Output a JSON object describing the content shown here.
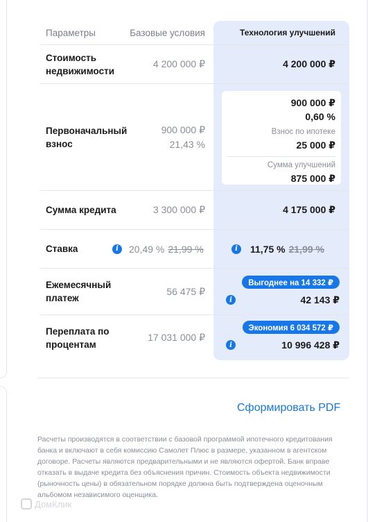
{
  "table": {
    "headers": {
      "params": "Параметры",
      "base": "Базовые условия",
      "tech": "Технология улучшений"
    },
    "price": {
      "label": "Стоимость недвижимости",
      "base": "4 200 000 ₽",
      "tech": "4 200 000 ₽"
    },
    "initial": {
      "label": "Первоначальный взнос",
      "base_amount": "900 000 ₽",
      "base_percent": "21,43 %",
      "tech_amount": "900 000 ₽",
      "tech_percent": "0,60 %",
      "mortgage_label": "Взнос по ипотеке",
      "mortgage_value": "25 000 ₽",
      "improve_label": "Сумма улучшений",
      "improve_value": "875 000 ₽"
    },
    "credit": {
      "label": "Сумма кредита",
      "base": "3 300 000 ₽",
      "tech": "4 175 000 ₽"
    },
    "rate": {
      "label": "Ставка",
      "base": "20,49 %",
      "base_old": "21,99 %",
      "tech": "11,75 %",
      "tech_old": "21,99 %"
    },
    "monthly": {
      "label": "Ежемесячный платеж",
      "base": "56 475 ₽",
      "badge": "Выгоднее на 14 332 ₽",
      "tech": "42 143 ₽"
    },
    "overpay": {
      "label": "Переплата по процентам",
      "base": "17 031 000 ₽",
      "badge": "Экономия 6 034 572 ₽",
      "tech": "10 996 428 ₽"
    }
  },
  "actions": {
    "pdf_label": "Сформировать PDF"
  },
  "disclaimer": "Расчеты производятся в соответствии с базовой программой ипотечного кредитования банка и включают в себя комиссию Самолет Плюс в размере, указанном в агентском договоре. Расчеты являются предварительными и не являются офертой. Банк вправе отказать в выдаче кредита без объяснения причин. Стоимость объекта недвижимости (рыночность цены) в обязательном порядке должна быть подтверждена оценочным альбомом независимого оценщика.",
  "watermark": "ДомКлик",
  "colors": {
    "accent": "#1777e8",
    "highlight_column": "#e4ebfb",
    "muted_text": "#8a8e96"
  },
  "icons": {
    "info": "info-circle-icon"
  }
}
